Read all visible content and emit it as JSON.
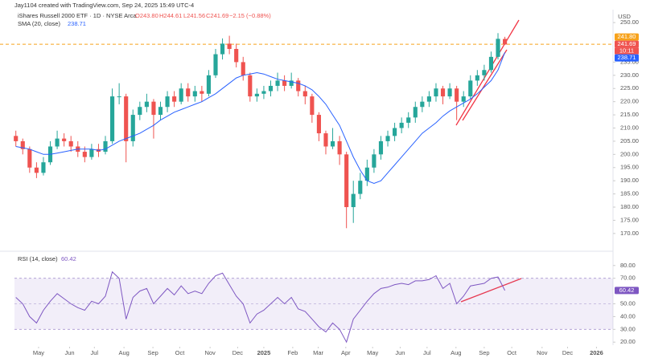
{
  "header": {
    "credit": "Jay1104 created with TradingView.com, Sep 24, 2025 15:49 UTC-4",
    "currency": "USD"
  },
  "chart_data": [
    {
      "type": "candlestick",
      "title": "iShares Russell 2000 ETF · 1D · NYSE Arca",
      "legend_o": "O243.80",
      "legend_h": "H244.61",
      "legend_l": "L241.56",
      "legend_c": "C241.69",
      "legend_change": "−2.15 (−0.88%)",
      "up_color": "#26a69a",
      "down_color": "#ef5350",
      "ohlc": [
        [
          207,
          209,
          203,
          205
        ],
        [
          205,
          206,
          200,
          202
        ],
        [
          202,
          203,
          193,
          195
        ],
        [
          195,
          197,
          191,
          193
        ],
        [
          193,
          199,
          192,
          197
        ],
        [
          197,
          205,
          196,
          203
        ],
        [
          203,
          209,
          202,
          206
        ],
        [
          206,
          208,
          203,
          205
        ],
        [
          205,
          207,
          201,
          203
        ],
        [
          203,
          205,
          199,
          201
        ],
        [
          201,
          203,
          197,
          199
        ],
        [
          199,
          204,
          198,
          202
        ],
        [
          202,
          204,
          199,
          201
        ],
        [
          201,
          207,
          200,
          205
        ],
        [
          205,
          225,
          204,
          222
        ],
        [
          222,
          227,
          219,
          222
        ],
        [
          222,
          223,
          197,
          205
        ],
        [
          205,
          217,
          203,
          215
        ],
        [
          215,
          220,
          213,
          218
        ],
        [
          218,
          223,
          216,
          220
        ],
        [
          220,
          221,
          206,
          215
        ],
        [
          215,
          220,
          213,
          218
        ],
        [
          218,
          224,
          216,
          222
        ],
        [
          222,
          224,
          218,
          220
        ],
        [
          220,
          227,
          219,
          225
        ],
        [
          225,
          227,
          220,
          222
        ],
        [
          222,
          226,
          220,
          224
        ],
        [
          224,
          226,
          220,
          223
        ],
        [
          223,
          232,
          222,
          230
        ],
        [
          230,
          240,
          229,
          238
        ],
        [
          238,
          244,
          236,
          242
        ],
        [
          242,
          245,
          238,
          240
        ],
        [
          240,
          242,
          233,
          235
        ],
        [
          235,
          237,
          228,
          230
        ],
        [
          230,
          231,
          220,
          222
        ],
        [
          222,
          225,
          220,
          223
        ],
        [
          223,
          226,
          221,
          224
        ],
        [
          224,
          228,
          222,
          226
        ],
        [
          226,
          231,
          224,
          228
        ],
        [
          228,
          230,
          224,
          226
        ],
        [
          226,
          231,
          225,
          228
        ],
        [
          228,
          229,
          222,
          224
        ],
        [
          224,
          226,
          219,
          222
        ],
        [
          222,
          223,
          212,
          215
        ],
        [
          215,
          216,
          205,
          208
        ],
        [
          208,
          209,
          200,
          203
        ],
        [
          203,
          210,
          202,
          205
        ],
        [
          205,
          207,
          196,
          200
        ],
        [
          200,
          201,
          172,
          180
        ],
        [
          180,
          190,
          174,
          185
        ],
        [
          185,
          193,
          183,
          190
        ],
        [
          190,
          198,
          188,
          195
        ],
        [
          195,
          202,
          193,
          200
        ],
        [
          200,
          207,
          198,
          205
        ],
        [
          205,
          209,
          203,
          207
        ],
        [
          207,
          212,
          205,
          210
        ],
        [
          210,
          214,
          208,
          212
        ],
        [
          212,
          216,
          210,
          214
        ],
        [
          214,
          220,
          212,
          218
        ],
        [
          218,
          222,
          216,
          220
        ],
        [
          220,
          224,
          218,
          222
        ],
        [
          222,
          227,
          220,
          225
        ],
        [
          225,
          226,
          219,
          222
        ],
        [
          222,
          227,
          221,
          225
        ],
        [
          225,
          226,
          213,
          220
        ],
        [
          220,
          224,
          218,
          222
        ],
        [
          222,
          230,
          221,
          228
        ],
        [
          228,
          232,
          226,
          230
        ],
        [
          230,
          234,
          228,
          232
        ],
        [
          232,
          239,
          231,
          237
        ],
        [
          237,
          246,
          236,
          243.84
        ],
        [
          243.8,
          244.61,
          241.56,
          241.69
        ]
      ],
      "last_price": {
        "value": 241.69,
        "label": "241.69"
      },
      "countdown": "10:11",
      "hline": {
        "value": 241.8,
        "label": "241.80",
        "color": "#f7a21b"
      },
      "series": [
        {
          "name": "SMA (20, close)",
          "color": "#2962ff",
          "last_label": "238.71",
          "values": [
            203,
            202.5,
            202,
            201,
            200,
            200,
            200.5,
            201,
            201.5,
            202,
            202,
            202,
            201.5,
            202,
            203.5,
            205,
            206,
            207,
            208,
            209.5,
            211,
            213,
            214.5,
            216,
            217,
            218,
            219,
            220,
            221.5,
            223,
            225,
            227,
            229,
            230,
            230.5,
            231,
            230.5,
            229.5,
            228.5,
            228,
            227.5,
            227,
            226,
            224.5,
            222,
            219,
            215,
            211,
            205,
            199,
            194,
            190,
            189,
            190,
            193,
            196,
            199,
            202,
            205,
            208,
            210,
            212,
            214.5,
            216.5,
            218,
            219.5,
            221,
            223,
            225.5,
            228,
            232,
            238.71
          ]
        }
      ],
      "xlim": [
        -0.2,
        86.7
      ],
      "ylim": [
        166,
        254
      ],
      "yticks": [
        {
          "value": 250,
          "label": "250.00"
        },
        {
          "value": 235,
          "label": "235.00"
        },
        {
          "value": 230,
          "label": "230.00"
        },
        {
          "value": 225,
          "label": "225.00"
        },
        {
          "value": 220,
          "label": "220.00"
        },
        {
          "value": 215,
          "label": "215.00"
        },
        {
          "value": 210,
          "label": "210.00"
        },
        {
          "value": 205,
          "label": "205.00"
        },
        {
          "value": 200,
          "label": "200.00"
        },
        {
          "value": 195,
          "label": "195.00"
        },
        {
          "value": 190,
          "label": "190.00"
        },
        {
          "value": 185,
          "label": "185.00"
        },
        {
          "value": 180,
          "label": "180.00"
        },
        {
          "value": 175,
          "label": "175.00"
        },
        {
          "value": 170,
          "label": "170.00"
        }
      ]
    },
    {
      "type": "line",
      "title": "RSI (14, close)",
      "series": [
        {
          "name": "RSI",
          "color": "#7e57c2",
          "last_label": "60.42",
          "values": [
            55,
            50,
            40,
            35,
            45,
            52,
            58,
            54,
            50,
            47,
            45,
            52,
            50,
            56,
            75,
            70,
            38,
            55,
            60,
            62,
            50,
            56,
            62,
            57,
            64,
            58,
            60,
            58,
            66,
            72,
            74,
            65,
            56,
            50,
            35,
            42,
            45,
            50,
            55,
            50,
            55,
            46,
            44,
            38,
            32,
            28,
            35,
            30,
            20,
            38,
            45,
            52,
            58,
            62,
            63,
            65,
            66,
            65,
            68,
            68,
            69,
            72,
            62,
            66,
            50,
            56,
            64,
            65,
            66,
            70,
            71,
            60.42
          ]
        }
      ],
      "band": [
        30,
        70
      ],
      "midline": 50,
      "xlim": [
        -0.2,
        86.7
      ],
      "ylim": [
        17,
        83
      ],
      "yticks": [
        {
          "value": 80,
          "label": "80.00"
        },
        {
          "value": 70,
          "label": "70.00"
        },
        {
          "value": 50,
          "label": "50.00"
        },
        {
          "value": 40,
          "label": "40.00"
        },
        {
          "value": 30,
          "label": "30.00"
        },
        {
          "value": 20,
          "label": "20.00"
        }
      ],
      "xticks": [
        {
          "value": 3.3,
          "label": "May"
        },
        {
          "value": 7.8,
          "label": "Jun"
        },
        {
          "value": 11.4,
          "label": "Jul"
        },
        {
          "value": 15.7,
          "label": "Aug"
        },
        {
          "value": 19.9,
          "label": "Sep"
        },
        {
          "value": 23.8,
          "label": "Oct"
        },
        {
          "value": 28.2,
          "label": "Nov"
        },
        {
          "value": 32.2,
          "label": "Dec"
        },
        {
          "value": 36,
          "label": "2025"
        },
        {
          "value": 40.2,
          "label": "Feb"
        },
        {
          "value": 43.9,
          "label": "Mar"
        },
        {
          "value": 47.9,
          "label": "Apr"
        },
        {
          "value": 51.8,
          "label": "May"
        },
        {
          "value": 55.8,
          "label": "Jun"
        },
        {
          "value": 59.7,
          "label": "Jul"
        },
        {
          "value": 63.9,
          "label": "Aug"
        },
        {
          "value": 68,
          "label": "Sep"
        },
        {
          "value": 72,
          "label": "Oct"
        },
        {
          "value": 76.4,
          "label": "Nov"
        },
        {
          "value": 80.1,
          "label": "Dec"
        },
        {
          "value": 84.3,
          "label": "2026"
        }
      ]
    }
  ]
}
